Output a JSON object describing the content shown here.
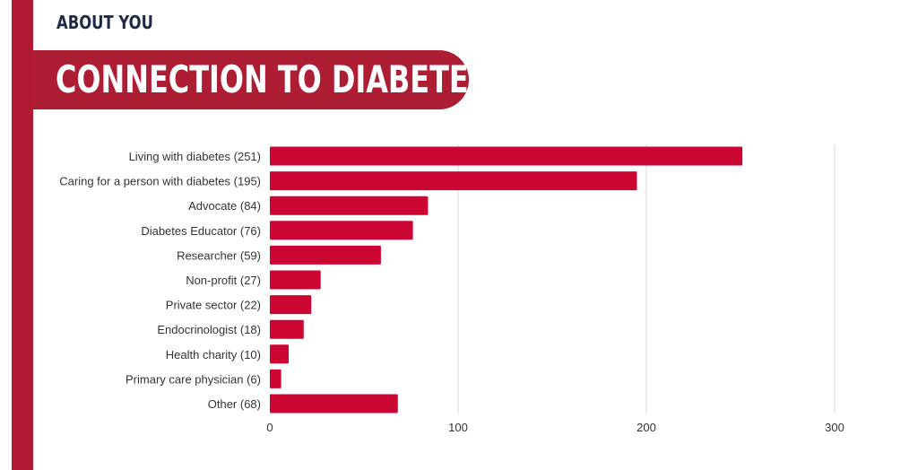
{
  "header": {
    "section_label": "ABOUT YOU",
    "title": "CONNECTION TO DIABETES"
  },
  "colors": {
    "accent": "#ad1d33",
    "bar": "#cc0633",
    "heading": "#1e2a48",
    "grid": "#d9d9d9"
  },
  "chart_data": {
    "type": "bar",
    "orientation": "horizontal",
    "categories": [
      "Living with diabetes (251)",
      "Caring for a person with diabetes (195)",
      "Advocate (84)",
      "Diabetes Educator (76)",
      "Researcher (59)",
      "Non-profit (27)",
      "Private sector (22)",
      "Endocrinologist (18)",
      "Health charity (10)",
      "Primary care physician (6)",
      "Other (68)"
    ],
    "values": [
      251,
      195,
      84,
      76,
      59,
      27,
      22,
      18,
      10,
      6,
      68
    ],
    "xlim": [
      0,
      300
    ],
    "xticks": [
      "0",
      "100",
      "200",
      "300"
    ],
    "grid": true,
    "title": "",
    "xlabel": "",
    "ylabel": ""
  }
}
